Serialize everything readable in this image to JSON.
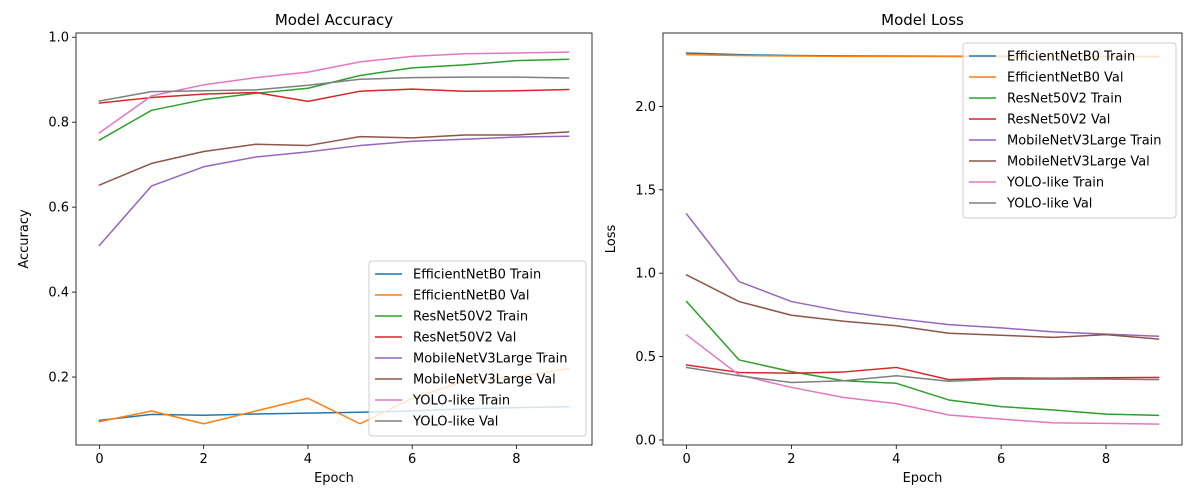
{
  "chart_data": [
    {
      "type": "line",
      "title": "Model Accuracy",
      "xlabel": "Epoch",
      "ylabel": "Accuracy",
      "x": [
        0,
        1,
        2,
        3,
        4,
        5,
        6,
        7,
        8,
        9
      ],
      "xticks": [
        "0",
        "2",
        "4",
        "6",
        "8"
      ],
      "yticks": [
        "0.2",
        "0.4",
        "0.6",
        "0.8",
        "1.0"
      ],
      "xlim": [
        -0.45,
        9.45
      ],
      "ylim": [
        0.04,
        1.01
      ],
      "legend_position": "lower-right",
      "grid": false,
      "series": [
        {
          "name": "EfficientNetB0 Train",
          "color": "#1f77b4",
          "values": [
            0.098,
            0.112,
            0.11,
            0.113,
            0.115,
            0.117,
            0.12,
            0.125,
            0.128,
            0.13
          ]
        },
        {
          "name": "EfficientNetB0 Val",
          "color": "#ff7f0e",
          "values": [
            0.095,
            0.12,
            0.09,
            0.12,
            0.15,
            0.09,
            0.15,
            0.19,
            0.2,
            0.22
          ]
        },
        {
          "name": "ResNet50V2 Train",
          "color": "#2ca02c",
          "values": [
            0.758,
            0.828,
            0.853,
            0.868,
            0.88,
            0.91,
            0.928,
            0.935,
            0.945,
            0.948
          ]
        },
        {
          "name": "ResNet50V2 Val",
          "color": "#d62728",
          "values": [
            0.845,
            0.858,
            0.866,
            0.87,
            0.849,
            0.873,
            0.878,
            0.873,
            0.874,
            0.877
          ]
        },
        {
          "name": "MobileNetV3Large Train",
          "color": "#9467bd",
          "values": [
            0.51,
            0.65,
            0.695,
            0.718,
            0.73,
            0.745,
            0.755,
            0.76,
            0.765,
            0.767
          ]
        },
        {
          "name": "MobileNetV3Large Val",
          "color": "#8c564b",
          "values": [
            0.652,
            0.703,
            0.731,
            0.748,
            0.745,
            0.766,
            0.763,
            0.77,
            0.77,
            0.777
          ]
        },
        {
          "name": "YOLO-like Train",
          "color": "#e377c2",
          "values": [
            0.775,
            0.862,
            0.888,
            0.905,
            0.918,
            0.942,
            0.955,
            0.961,
            0.963,
            0.965
          ]
        },
        {
          "name": "YOLO-like Val",
          "color": "#7f7f7f",
          "values": [
            0.85,
            0.872,
            0.874,
            0.876,
            0.887,
            0.901,
            0.905,
            0.906,
            0.906,
            0.904
          ]
        }
      ]
    },
    {
      "type": "line",
      "title": "Model Loss",
      "xlabel": "Epoch",
      "ylabel": "Loss",
      "x": [
        0,
        1,
        2,
        3,
        4,
        5,
        6,
        7,
        8,
        9
      ],
      "xticks": [
        "0",
        "2",
        "4",
        "6",
        "8"
      ],
      "yticks": [
        "0.0",
        "0.5",
        "1.0",
        "1.5",
        "2.0"
      ],
      "xlim": [
        -0.45,
        9.45
      ],
      "ylim": [
        -0.03,
        2.44
      ],
      "legend_position": "upper-right",
      "grid": false,
      "series": [
        {
          "name": "EfficientNetB0 Train",
          "color": "#1f77b4",
          "values": [
            2.32,
            2.31,
            2.305,
            2.303,
            2.302,
            2.301,
            2.3,
            2.3,
            2.3,
            2.299
          ]
        },
        {
          "name": "EfficientNetB0 Val",
          "color": "#ff7f0e",
          "values": [
            2.31,
            2.305,
            2.302,
            2.3,
            2.3,
            2.299,
            2.298,
            2.298,
            2.298,
            2.297
          ]
        },
        {
          "name": "ResNet50V2 Train",
          "color": "#2ca02c",
          "values": [
            0.83,
            0.48,
            0.41,
            0.355,
            0.34,
            0.24,
            0.2,
            0.18,
            0.155,
            0.148
          ]
        },
        {
          "name": "ResNet50V2 Val",
          "color": "#d62728",
          "values": [
            0.45,
            0.405,
            0.4,
            0.408,
            0.435,
            0.362,
            0.372,
            0.37,
            0.373,
            0.375
          ]
        },
        {
          "name": "MobileNetV3Large Train",
          "color": "#9467bd",
          "values": [
            1.355,
            0.95,
            0.83,
            0.77,
            0.728,
            0.692,
            0.672,
            0.648,
            0.635,
            0.622
          ]
        },
        {
          "name": "MobileNetV3Large Val",
          "color": "#8c564b",
          "values": [
            0.99,
            0.83,
            0.748,
            0.712,
            0.685,
            0.64,
            0.628,
            0.615,
            0.632,
            0.605
          ]
        },
        {
          "name": "YOLO-like Train",
          "color": "#e377c2",
          "values": [
            0.63,
            0.39,
            0.315,
            0.255,
            0.218,
            0.15,
            0.125,
            0.103,
            0.1,
            0.095
          ]
        },
        {
          "name": "YOLO-like Val",
          "color": "#7f7f7f",
          "values": [
            0.435,
            0.385,
            0.345,
            0.355,
            0.385,
            0.352,
            0.365,
            0.365,
            0.365,
            0.362
          ]
        }
      ]
    }
  ]
}
